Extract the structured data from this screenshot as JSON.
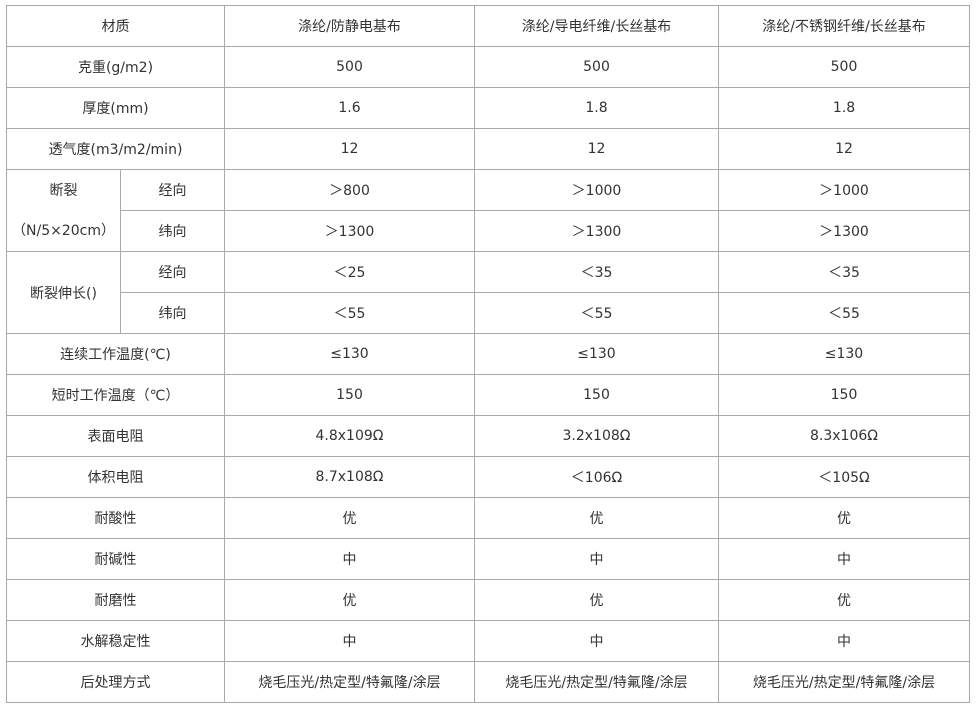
{
  "header": [
    "材质",
    "涤纶/防静电基布",
    "涤纶/导电纤维/长丝基布",
    "涤纶/不锈钢纤维/长丝基布"
  ],
  "rows": [
    {
      "label": "克重(g/m2)",
      "values": [
        "500",
        "500",
        "500"
      ]
    },
    {
      "label": "厚度(mm)",
      "values": [
        "1.6",
        "1.8",
        "1.8"
      ]
    },
    {
      "label": "透气度(m3/m2/min)",
      "values": [
        "12",
        "12",
        "12"
      ]
    },
    {
      "label": "连续工作温度(℃)",
      "values": [
        "≤130",
        "≤130",
        "≤130"
      ]
    },
    {
      "label": "短时工作温度（℃）",
      "values": [
        "150",
        "150",
        "150"
      ]
    },
    {
      "label": "表面电阻",
      "values": [
        "4.8x109Ω",
        "3.2x108Ω",
        "8.3x106Ω"
      ]
    },
    {
      "label": "体积电阻",
      "values": [
        "8.7x108Ω",
        "＜106Ω",
        "＜105Ω"
      ]
    },
    {
      "label": "耐酸性",
      "values": [
        "优",
        "优",
        "优"
      ]
    },
    {
      "label": "耐碱性",
      "values": [
        "中",
        "中",
        "中"
      ]
    },
    {
      "label": "耐磨性",
      "values": [
        "优",
        "优",
        "优"
      ]
    },
    {
      "label": "水解稳定性",
      "values": [
        "中",
        "中",
        "中"
      ]
    },
    {
      "label": "后处理方式",
      "values": [
        "烧毛压光/热定型/特氟隆/涂层",
        "烧毛压光/热定型/特氟隆/涂层",
        "烧毛压光/热定型/特氟隆/涂层"
      ]
    }
  ],
  "breaking": {
    "label_line1": "断裂",
    "label_line2": "（N/5×20cm）",
    "sub": [
      {
        "label": "经向",
        "values": [
          "＞800",
          "＞1000",
          "＞1000"
        ]
      },
      {
        "label": "纬向",
        "values": [
          "＞1300",
          "＞1300",
          "＞1300"
        ]
      }
    ]
  },
  "elongation": {
    "label": "断裂伸长()",
    "sub": [
      {
        "label": "经向",
        "values": [
          "＜25",
          "＜35",
          "＜35"
        ]
      },
      {
        "label": "纬向",
        "values": [
          "＜55",
          "＜55",
          "＜55"
        ]
      }
    ]
  }
}
